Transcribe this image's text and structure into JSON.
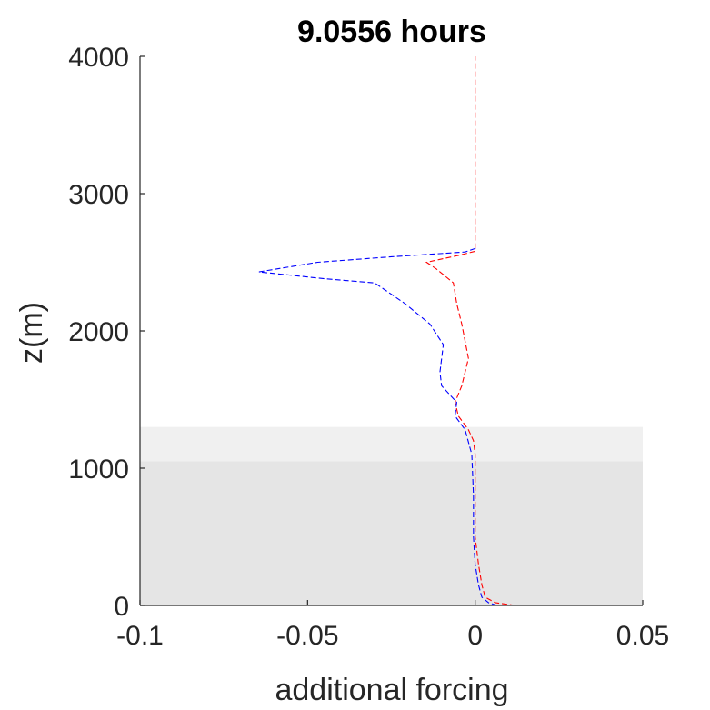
{
  "chart_data": {
    "type": "line",
    "title": "9.0556 hours",
    "xlabel": "additional forcing",
    "ylabel": "z(m)",
    "xlim": [
      -0.1,
      0.05
    ],
    "ylim": [
      0,
      4000
    ],
    "xticks": [
      -0.1,
      -0.05,
      0,
      0.05
    ],
    "xtick_labels": [
      "-0.1",
      "-0.05",
      "0",
      "0.05"
    ],
    "yticks": [
      0,
      1000,
      2000,
      3000,
      4000
    ],
    "ytick_labels": [
      "0",
      "1000",
      "2000",
      "3000",
      "4000"
    ],
    "grid": false,
    "bands": [
      {
        "y0": 0,
        "y1": 1050,
        "color": "#e5e5e5"
      },
      {
        "y0": 1050,
        "y1": 1300,
        "color": "#f0f0f0"
      }
    ],
    "series": [
      {
        "color": "#ff0000",
        "style": "dashed",
        "points": [
          [
            0.012,
            0
          ],
          [
            0.006,
            20
          ],
          [
            0.003,
            60
          ],
          [
            0.002,
            150
          ],
          [
            0.001,
            300
          ],
          [
            0.0,
            500
          ],
          [
            0.0,
            800
          ],
          [
            0.0,
            1100
          ],
          [
            -0.0005,
            1200
          ],
          [
            -0.002,
            1280
          ],
          [
            -0.005,
            1380
          ],
          [
            -0.006,
            1480
          ],
          [
            -0.004,
            1600
          ],
          [
            -0.002,
            1800
          ],
          [
            -0.004,
            2050
          ],
          [
            -0.0055,
            2200
          ],
          [
            -0.0065,
            2350
          ],
          [
            -0.0115,
            2450
          ],
          [
            -0.0145,
            2500
          ],
          [
            -0.005,
            2550
          ],
          [
            0.0,
            2580
          ],
          [
            0.0,
            2700
          ],
          [
            0.0,
            3000
          ],
          [
            0.0,
            3500
          ],
          [
            0.0,
            4000
          ]
        ]
      },
      {
        "color": "#0000ff",
        "style": "dashed",
        "points": [
          [
            0.0065,
            0
          ],
          [
            0.004,
            20
          ],
          [
            0.002,
            60
          ],
          [
            0.001,
            150
          ],
          [
            0.0,
            300
          ],
          [
            -0.0005,
            500
          ],
          [
            -0.0005,
            800
          ],
          [
            -0.001,
            1100
          ],
          [
            -0.003,
            1280
          ],
          [
            -0.006,
            1380
          ],
          [
            -0.0055,
            1480
          ],
          [
            -0.01,
            1600
          ],
          [
            -0.0105,
            1700
          ],
          [
            -0.0095,
            1900
          ],
          [
            -0.0135,
            2050
          ],
          [
            -0.021,
            2200
          ],
          [
            -0.03,
            2350
          ],
          [
            -0.045,
            2380
          ],
          [
            -0.0645,
            2430
          ],
          [
            -0.047,
            2500
          ],
          [
            -0.025,
            2540
          ],
          [
            -0.003,
            2575
          ],
          [
            0.0,
            2600
          ],
          [
            0.0,
            2620
          ]
        ]
      }
    ]
  }
}
